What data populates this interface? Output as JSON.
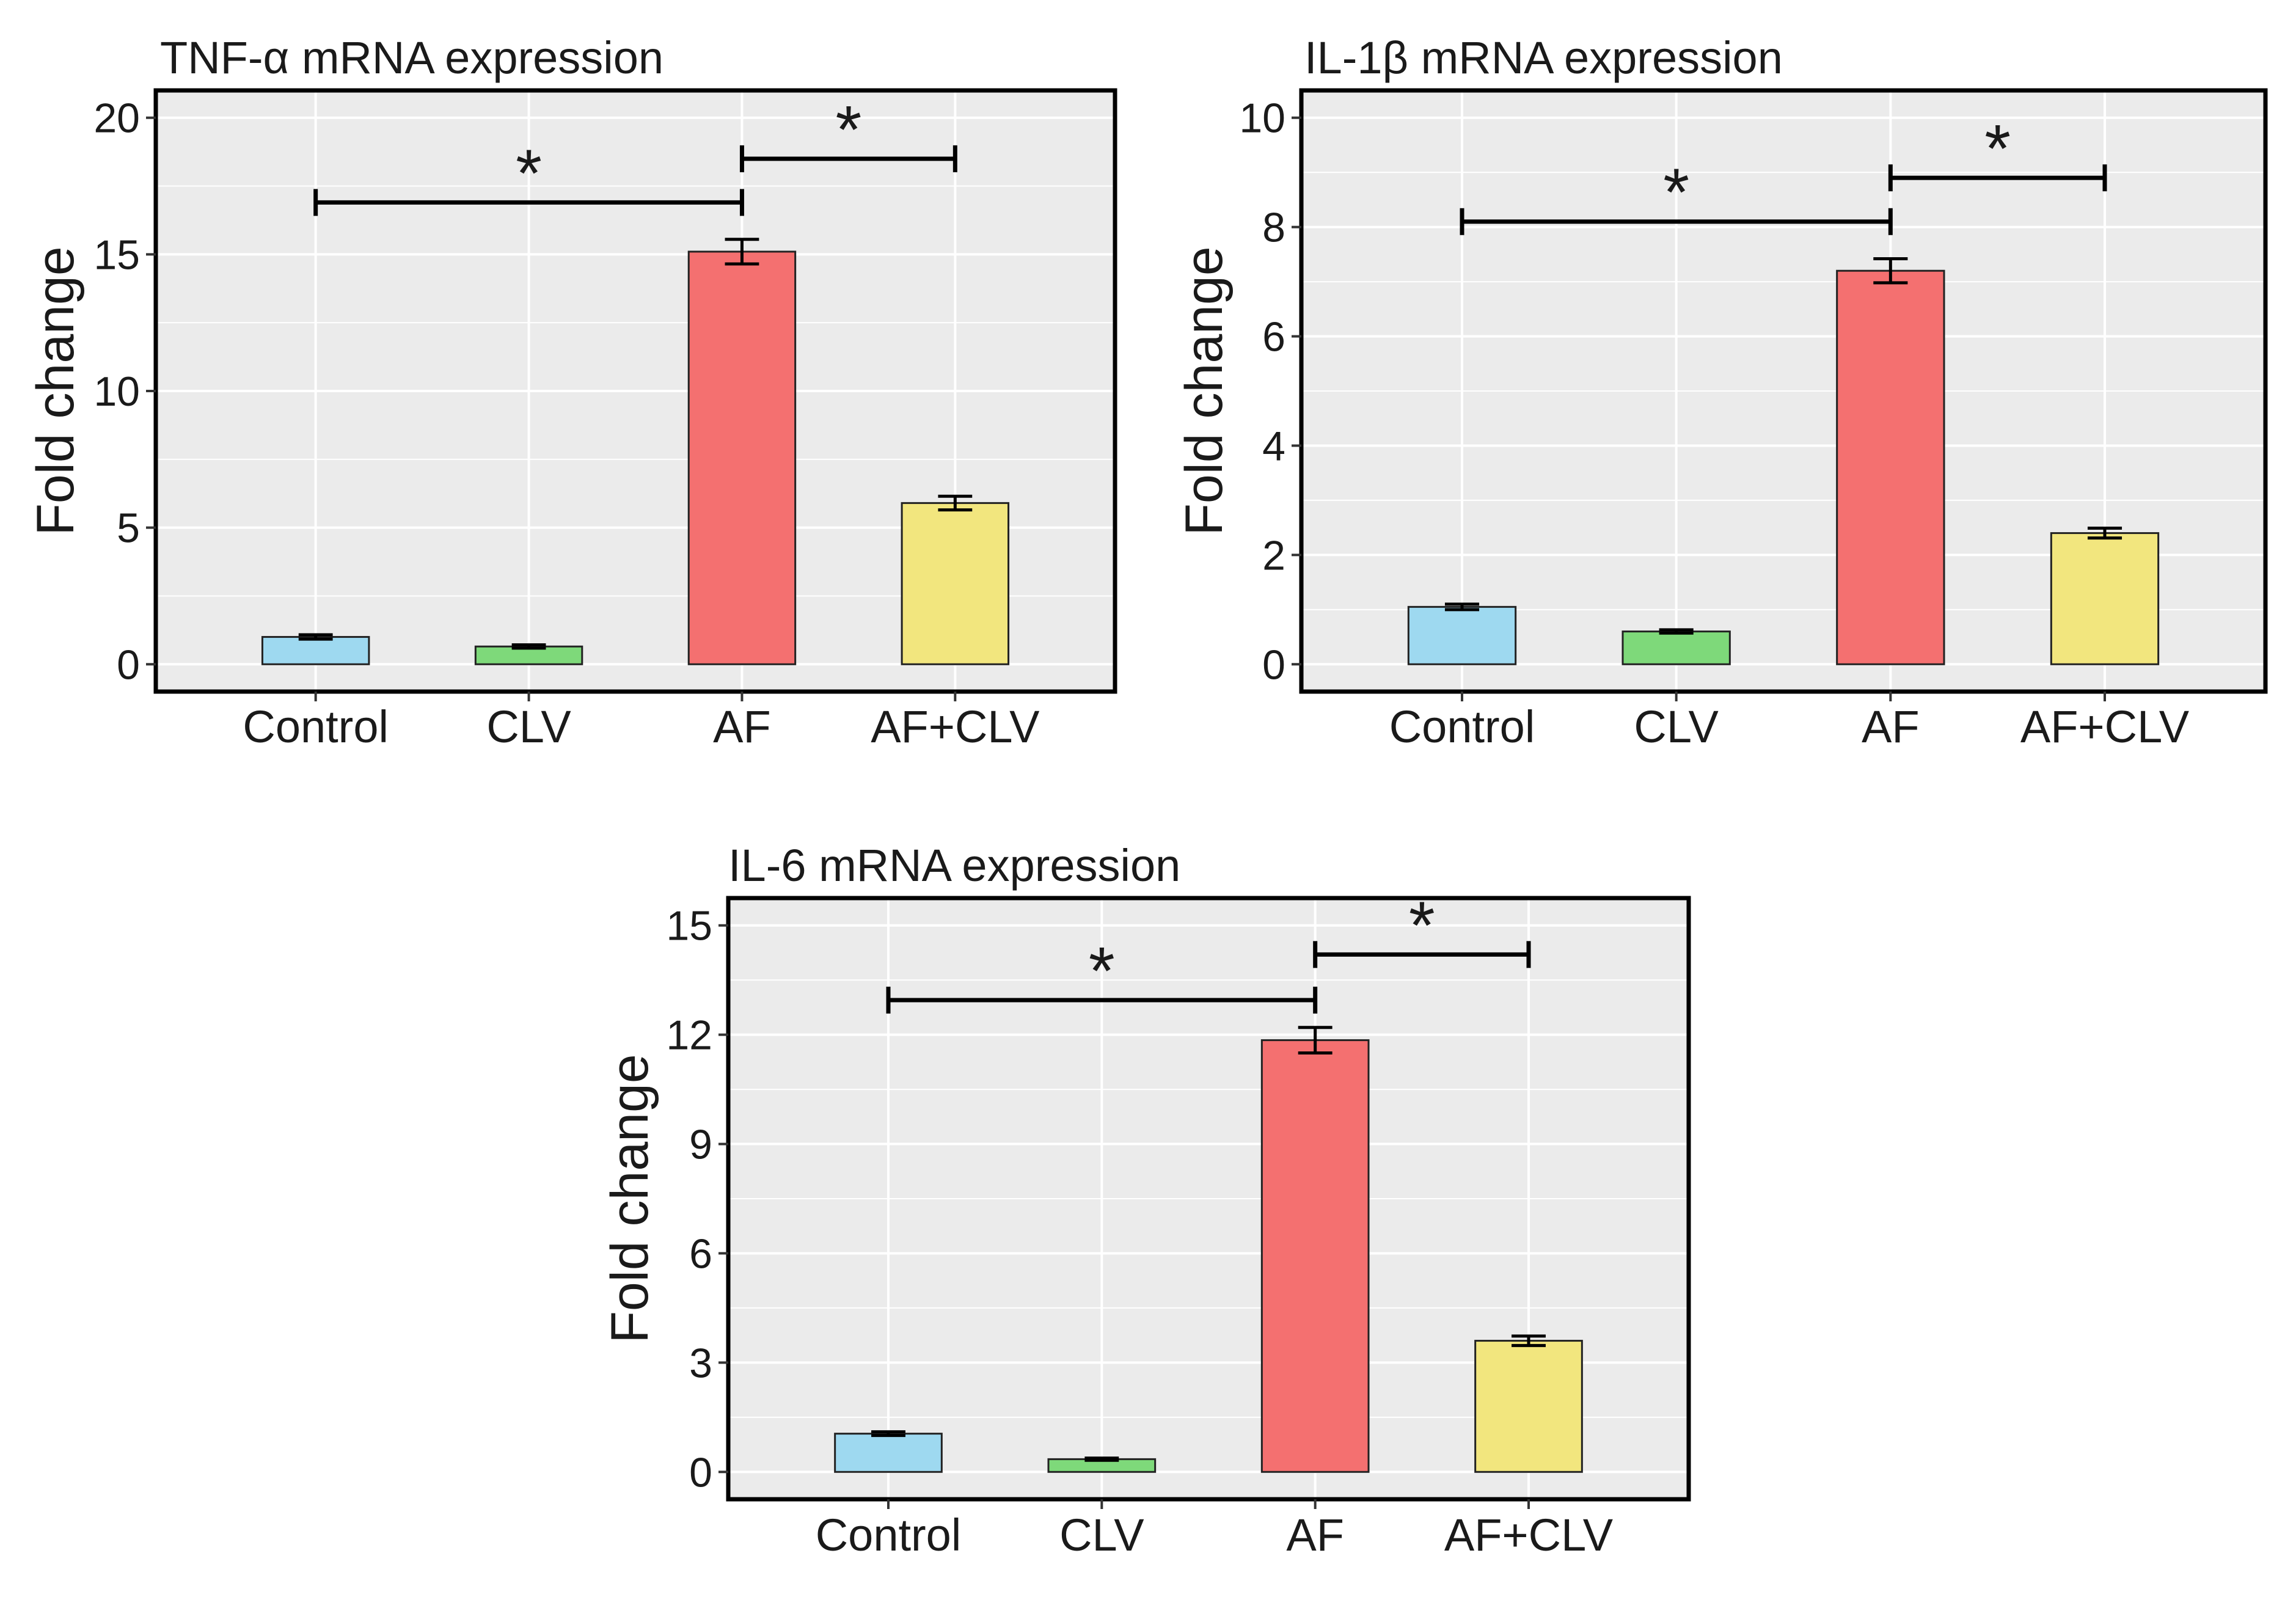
{
  "chart_data": [
    {
      "type": "bar",
      "title": "TNF-α mRNA expression",
      "xlabel": "",
      "ylabel": "Fold change",
      "categories": [
        "Control",
        "CLV",
        "AF",
        "AF+CLV"
      ],
      "values": [
        1.0,
        0.65,
        15.1,
        5.9
      ],
      "errors": [
        0.08,
        0.06,
        0.45,
        0.25
      ],
      "colors": [
        "#9ED9F0",
        "#7ED97A",
        "#F47070",
        "#F2E67E"
      ],
      "ylim": [
        -1,
        21
      ],
      "yticks": [
        0,
        5,
        10,
        15,
        20
      ],
      "grid": true,
      "significance": [
        {
          "from": "Control",
          "to": "AF",
          "y": 16.9,
          "label": "*"
        },
        {
          "from": "AF",
          "to": "AF+CLV",
          "y": 18.5,
          "label": "*"
        }
      ]
    },
    {
      "type": "bar",
      "title": "IL-1β mRNA expression",
      "xlabel": "",
      "ylabel": "Fold change",
      "categories": [
        "Control",
        "CLV",
        "AF",
        "AF+CLV"
      ],
      "values": [
        1.05,
        0.6,
        7.2,
        2.4
      ],
      "errors": [
        0.05,
        0.03,
        0.22,
        0.09
      ],
      "colors": [
        "#9ED9F0",
        "#7ED97A",
        "#F47070",
        "#F2E67E"
      ],
      "ylim": [
        -0.5,
        10.5
      ],
      "yticks": [
        0,
        2,
        4,
        6,
        8,
        10
      ],
      "grid": true,
      "significance": [
        {
          "from": "Control",
          "to": "AF",
          "y": 8.1,
          "label": "*"
        },
        {
          "from": "AF",
          "to": "AF+CLV",
          "y": 8.9,
          "label": "*"
        }
      ]
    },
    {
      "type": "bar",
      "title": "IL-6 mRNA expression",
      "xlabel": "",
      "ylabel": "Fold change",
      "categories": [
        "Control",
        "CLV",
        "AF",
        "AF+CLV"
      ],
      "values": [
        1.05,
        0.35,
        11.85,
        3.6
      ],
      "errors": [
        0.05,
        0.03,
        0.35,
        0.13
      ],
      "colors": [
        "#9ED9F0",
        "#7ED97A",
        "#F47070",
        "#F2E67E"
      ],
      "ylim": [
        -0.75,
        15.75
      ],
      "yticks": [
        0,
        3,
        6,
        9,
        12,
        15
      ],
      "grid": true,
      "significance": [
        {
          "from": "Control",
          "to": "AF",
          "y": 12.95,
          "label": "*"
        },
        {
          "from": "AF",
          "to": "AF+CLV",
          "y": 14.2,
          "label": "*"
        }
      ]
    }
  ]
}
